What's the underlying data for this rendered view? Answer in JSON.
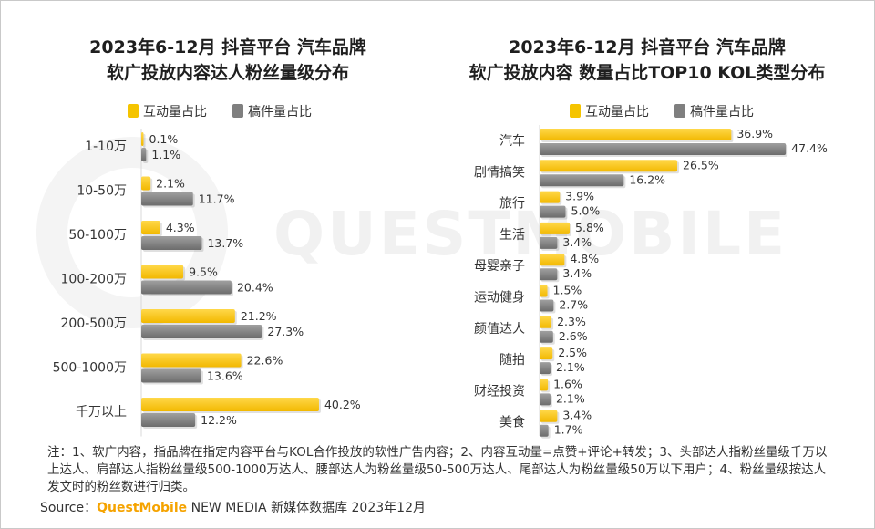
{
  "colors": {
    "engagement": "#f5c400",
    "posts": "#7f7f7f",
    "brand": "#f5a300"
  },
  "legend": {
    "engagement": "互动量占比",
    "posts": "稿件量占比"
  },
  "left_chart": {
    "title_line1": "2023年6-12月 抖音平台 汽车品牌",
    "title_line2": "软广投放内容达人粉丝量级分布"
  },
  "right_chart": {
    "title_line1": "2023年6-12月 抖音平台 汽车品牌",
    "title_line2": "软广投放内容 数量占比TOP10 KOL类型分布"
  },
  "chart_data": [
    {
      "type": "bar",
      "orientation": "horizontal",
      "title": "2023年6-12月 抖音平台 汽车品牌 软广投放内容达人粉丝量级分布",
      "categories": [
        "1-10万",
        "10-50万",
        "50-100万",
        "100-200万",
        "200-500万",
        "500-1000万",
        "千万以上"
      ],
      "series": [
        {
          "name": "互动量占比",
          "values": [
            0.1,
            2.1,
            4.3,
            9.5,
            21.2,
            22.6,
            40.2
          ],
          "labels": [
            "0.1%",
            "2.1%",
            "4.3%",
            "9.5%",
            "21.2%",
            "22.6%",
            "40.2%"
          ]
        },
        {
          "name": "稿件量占比",
          "values": [
            1.1,
            11.7,
            13.7,
            20.4,
            27.3,
            13.6,
            12.2
          ],
          "labels": [
            "1.1%",
            "11.7%",
            "13.7%",
            "20.4%",
            "27.3%",
            "13.6%",
            "12.2%"
          ]
        }
      ],
      "unit": "%"
    },
    {
      "type": "bar",
      "orientation": "horizontal",
      "title": "2023年6-12月 抖音平台 汽车品牌 软广投放内容 数量占比TOP10 KOL类型分布",
      "categories": [
        "汽车",
        "剧情搞笑",
        "旅行",
        "生活",
        "母婴亲子",
        "运动健身",
        "颜值达人",
        "随拍",
        "财经投资",
        "美食"
      ],
      "series": [
        {
          "name": "互动量占比",
          "values": [
            36.9,
            26.5,
            3.9,
            5.8,
            4.8,
            1.5,
            2.3,
            2.5,
            1.6,
            3.4
          ],
          "labels": [
            "36.9%",
            "26.5%",
            "3.9%",
            "5.8%",
            "4.8%",
            "1.5%",
            "2.3%",
            "2.5%",
            "1.6%",
            "3.4%"
          ]
        },
        {
          "name": "稿件量占比",
          "values": [
            47.4,
            16.2,
            5.0,
            3.4,
            3.4,
            2.7,
            2.6,
            2.1,
            2.1,
            1.7
          ],
          "labels": [
            "47.4%",
            "16.2%",
            "5.0%",
            "3.4%",
            "3.4%",
            "2.7%",
            "2.6%",
            "2.1%",
            "2.1%",
            "1.7%"
          ]
        }
      ],
      "unit": "%"
    }
  ],
  "note": "注：1、软广内容，指品牌在指定内容平台与KOL合作投放的软性广告内容；2、内容互动量=点赞+评论+转发；3、头部达人指粉丝量级千万以上达人、肩部达人指粉丝量级500-1000万达人、腰部达人为粉丝量级50-500万达人、尾部达人为粉丝量级50万以下用户；4、粉丝量级按达人发文时的粉丝数进行归类。",
  "source": {
    "prefix": "Source：",
    "brand": "QuestMobile",
    "suffix": " NEW MEDIA 新媒体数据库 2023年12月"
  },
  "watermark": "QUESTMOBILE"
}
